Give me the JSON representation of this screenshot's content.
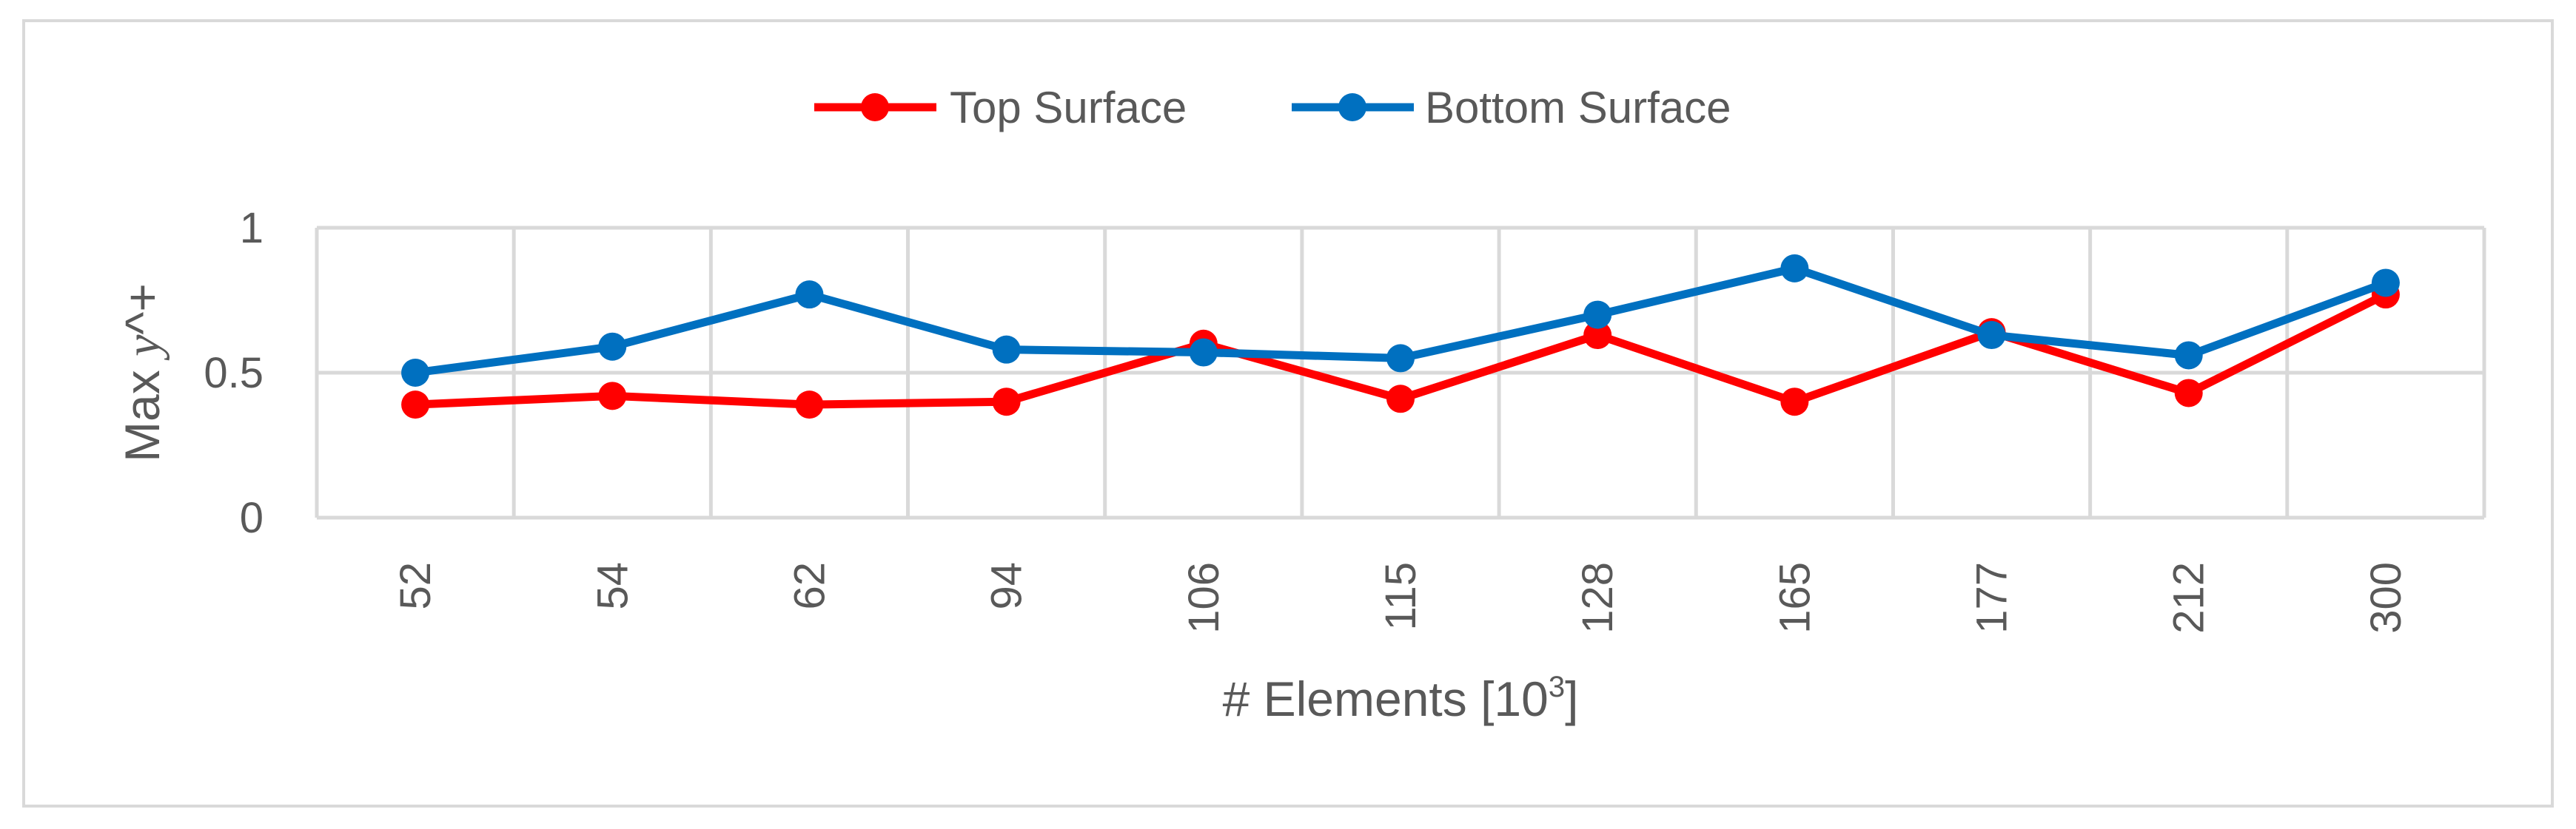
{
  "chart_data": {
    "type": "line",
    "categories": [
      "52",
      "54",
      "62",
      "94",
      "106",
      "115",
      "128",
      "165",
      "177",
      "212",
      "300"
    ],
    "series": [
      {
        "name": "Top Surface",
        "color": "#ff0000",
        "values": [
          0.39,
          0.42,
          0.39,
          0.4,
          0.6,
          0.41,
          0.63,
          0.4,
          0.64,
          0.43,
          0.77
        ]
      },
      {
        "name": "Bottom Surface",
        "color": "#0070c0",
        "values": [
          0.5,
          0.59,
          0.77,
          0.58,
          0.57,
          0.55,
          0.7,
          0.86,
          0.63,
          0.56,
          0.81
        ]
      }
    ],
    "xlabel": "# Elements [10",
    "xlabel_sup": "3",
    "xlabel_end": "]",
    "ylabel_main": "Max ",
    "ylabel_var": "y",
    "ylabel_rest": "^+",
    "ylim": [
      0,
      1
    ],
    "yticks": [
      0,
      0.5,
      1
    ],
    "ytick_labels": [
      "0",
      "0.5",
      "1"
    ],
    "grid": true,
    "legend": "top-center",
    "colors": {
      "grid": "#d9d9d9",
      "text": "#595959",
      "border": "#d9d9d9"
    }
  }
}
